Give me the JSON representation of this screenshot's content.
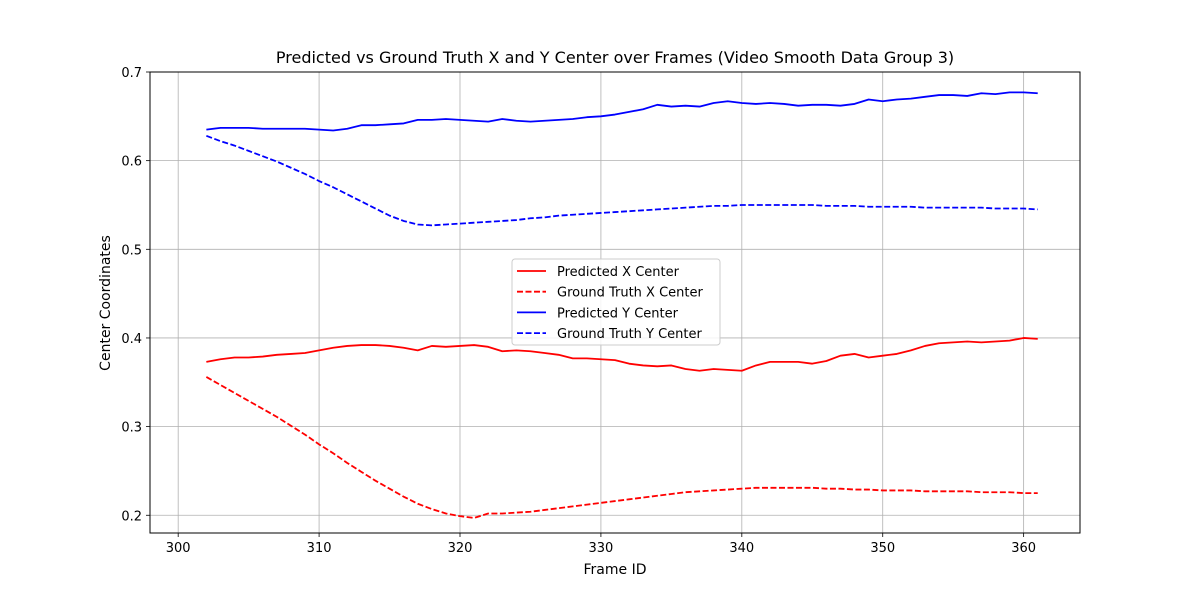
{
  "chart_data": {
    "type": "line",
    "title": "Predicted vs Ground Truth X and Y Center over Frames (Video Smooth Data Group 3)",
    "xlabel": "Frame ID",
    "ylabel": "Center Coordinates",
    "xlim": [
      298,
      364
    ],
    "ylim": [
      0.18,
      0.7
    ],
    "xticks": [
      300,
      310,
      320,
      330,
      340,
      350,
      360
    ],
    "yticks": [
      0.2,
      0.3,
      0.4,
      0.5,
      0.6,
      0.7
    ],
    "xtick_labels": [
      "300",
      "310",
      "320",
      "330",
      "340",
      "350",
      "360"
    ],
    "ytick_labels": [
      "0.2",
      "0.3",
      "0.4",
      "0.5",
      "0.6",
      "0.7"
    ],
    "grid": true,
    "legend_position": "center",
    "x": [
      302,
      303,
      304,
      305,
      306,
      307,
      308,
      309,
      310,
      311,
      312,
      313,
      314,
      315,
      316,
      317,
      318,
      319,
      320,
      321,
      322,
      323,
      324,
      325,
      326,
      327,
      328,
      329,
      330,
      331,
      332,
      333,
      334,
      335,
      336,
      337,
      338,
      339,
      340,
      341,
      342,
      343,
      344,
      345,
      346,
      347,
      348,
      349,
      350,
      351,
      352,
      353,
      354,
      355,
      356,
      357,
      358,
      359,
      360,
      361
    ],
    "series": [
      {
        "name": "Predicted X Center",
        "color": "#ff0000",
        "dash": "solid",
        "values": [
          0.373,
          0.376,
          0.378,
          0.378,
          0.379,
          0.381,
          0.382,
          0.383,
          0.386,
          0.389,
          0.391,
          0.392,
          0.392,
          0.391,
          0.389,
          0.386,
          0.391,
          0.39,
          0.391,
          0.392,
          0.39,
          0.385,
          0.386,
          0.385,
          0.383,
          0.381,
          0.377,
          0.377,
          0.376,
          0.375,
          0.371,
          0.369,
          0.368,
          0.369,
          0.365,
          0.363,
          0.365,
          0.364,
          0.363,
          0.369,
          0.373,
          0.373,
          0.373,
          0.371,
          0.374,
          0.38,
          0.382,
          0.378,
          0.38,
          0.382,
          0.386,
          0.391,
          0.394,
          0.395,
          0.396,
          0.395,
          0.396,
          0.397,
          0.4,
          0.399
        ]
      },
      {
        "name": "Ground Truth X Center",
        "color": "#ff0000",
        "dash": "dashed",
        "values": [
          0.356,
          0.347,
          0.338,
          0.329,
          0.32,
          0.311,
          0.301,
          0.291,
          0.28,
          0.27,
          0.259,
          0.249,
          0.239,
          0.23,
          0.221,
          0.213,
          0.207,
          0.202,
          0.199,
          0.197,
          0.202,
          0.202,
          0.203,
          0.204,
          0.206,
          0.208,
          0.21,
          0.212,
          0.214,
          0.216,
          0.218,
          0.22,
          0.222,
          0.224,
          0.226,
          0.227,
          0.228,
          0.229,
          0.23,
          0.231,
          0.231,
          0.231,
          0.231,
          0.231,
          0.23,
          0.23,
          0.229,
          0.229,
          0.228,
          0.228,
          0.228,
          0.227,
          0.227,
          0.227,
          0.227,
          0.226,
          0.226,
          0.226,
          0.225,
          0.225
        ]
      },
      {
        "name": "Predicted Y Center",
        "color": "#0000ff",
        "dash": "solid",
        "values": [
          0.635,
          0.637,
          0.637,
          0.637,
          0.636,
          0.636,
          0.636,
          0.636,
          0.635,
          0.634,
          0.636,
          0.64,
          0.64,
          0.641,
          0.642,
          0.646,
          0.646,
          0.647,
          0.646,
          0.645,
          0.644,
          0.647,
          0.645,
          0.644,
          0.645,
          0.646,
          0.647,
          0.649,
          0.65,
          0.652,
          0.655,
          0.658,
          0.663,
          0.661,
          0.662,
          0.661,
          0.665,
          0.667,
          0.665,
          0.664,
          0.665,
          0.664,
          0.662,
          0.663,
          0.663,
          0.662,
          0.664,
          0.669,
          0.667,
          0.669,
          0.67,
          0.672,
          0.674,
          0.674,
          0.673,
          0.676,
          0.675,
          0.677,
          0.677,
          0.676
        ]
      },
      {
        "name": "Ground Truth Y Center",
        "color": "#0000ff",
        "dash": "dashed",
        "values": [
          0.628,
          0.622,
          0.617,
          0.611,
          0.605,
          0.599,
          0.592,
          0.585,
          0.577,
          0.57,
          0.562,
          0.554,
          0.546,
          0.538,
          0.532,
          0.528,
          0.527,
          0.528,
          0.529,
          0.53,
          0.531,
          0.532,
          0.533,
          0.535,
          0.536,
          0.538,
          0.539,
          0.54,
          0.541,
          0.542,
          0.543,
          0.544,
          0.545,
          0.546,
          0.547,
          0.548,
          0.549,
          0.549,
          0.55,
          0.55,
          0.55,
          0.55,
          0.55,
          0.55,
          0.549,
          0.549,
          0.549,
          0.548,
          0.548,
          0.548,
          0.548,
          0.547,
          0.547,
          0.547,
          0.547,
          0.547,
          0.546,
          0.546,
          0.546,
          0.545
        ]
      }
    ]
  }
}
